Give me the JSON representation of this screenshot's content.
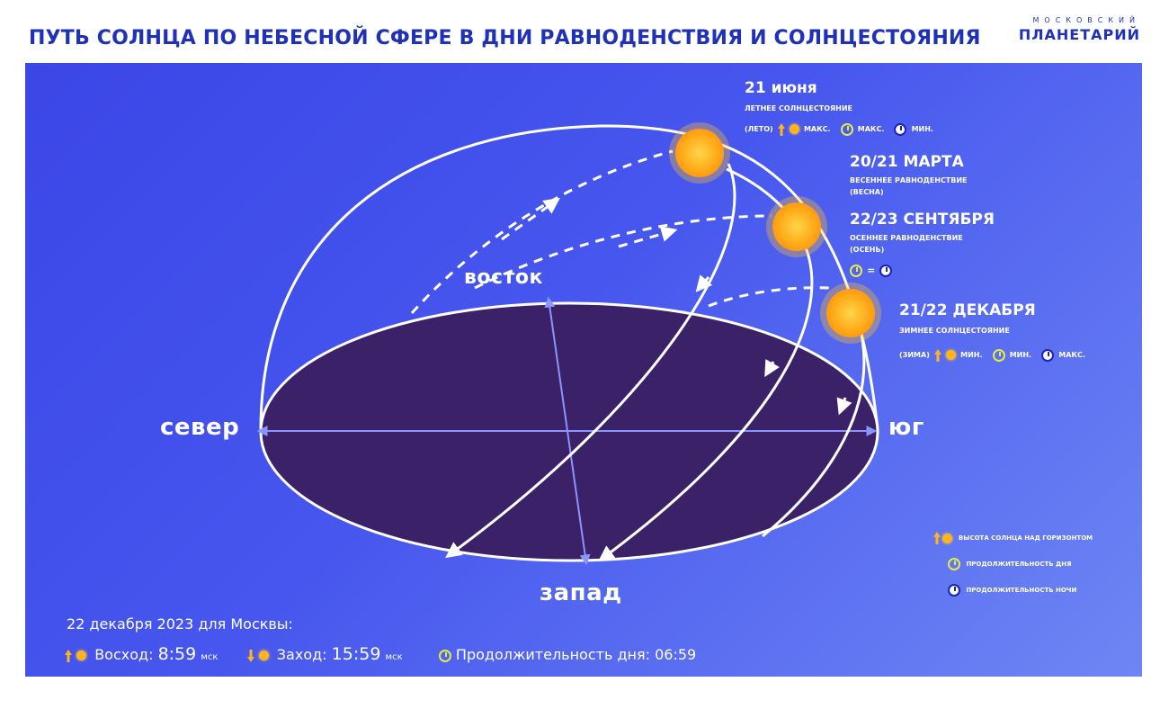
{
  "header": {
    "title": "ПУТЬ СОЛНЦА ПО НЕБЕСНОЙ СФЕРЕ В ДНИ РАВНОДЕНСТВИЯ И СОЛНЦЕСТОЯНИЯ",
    "logo_top": "МОСКОВСКИЙ",
    "logo_bottom": "ПЛАНЕТАРИЙ"
  },
  "directions": {
    "north": "север",
    "south": "юг",
    "east": "восток",
    "west": "запад"
  },
  "dates": {
    "june": {
      "title": "21 июня",
      "subtitle": "ЛЕТНЕЕ СОЛНЦЕСТОЯНИЕ",
      "season": "(ЛЕТО)",
      "height": "МАКС.",
      "day": "МАКС.",
      "night": "МИН."
    },
    "march": {
      "title": "20/21 МАРТА",
      "subtitle": "ВЕСЕННЕЕ РАВНОДЕНСТВИЕ",
      "season": "(ВЕСНА)"
    },
    "september": {
      "title": "22/23 СЕНТЯБРЯ",
      "subtitle": "ОСЕННЕЕ РАВНОДЕНСТВИЕ",
      "season": "(ОСЕНЬ)",
      "equals": "="
    },
    "december": {
      "title": "21/22 ДЕКАБРЯ",
      "subtitle": "ЗИМНЕЕ СОЛНЦЕСТОЯНИЕ",
      "season": "(ЗИМА)",
      "height": "МИН.",
      "day": "МИН.",
      "night": "МАКС."
    }
  },
  "legend": {
    "sun_height": "ВЫСОТА СОЛНЦА НАД ГОРИЗОНТОМ",
    "day_length": "ПРОДОЛЖИТЕЛЬНОСТЬ ДНЯ",
    "night_length": "ПРОДОЛЖИТЕЛЬНОСТЬ НОЧИ"
  },
  "info": {
    "heading": "22 декабря 2023 для Москвы:",
    "sunrise_label": "Восход:",
    "sunrise_time": "8:59",
    "sunset_label": "Заход:",
    "sunset_time": "15:59",
    "unit": "мск",
    "day_length_label": "Продолжительность дня: 06:59"
  },
  "colors": {
    "panel_blue": "#4656ee",
    "horizon_purple": "#3a2168",
    "sun_orange": "#ffb31c",
    "day_yellow": "#e4ec44",
    "night_blue": "#1b24b8",
    "title_blue": "#1e31b8"
  },
  "icons": [
    "sun-icon",
    "up-arrow-icon",
    "down-arrow-icon",
    "day-clock-icon",
    "night-clock-icon"
  ]
}
